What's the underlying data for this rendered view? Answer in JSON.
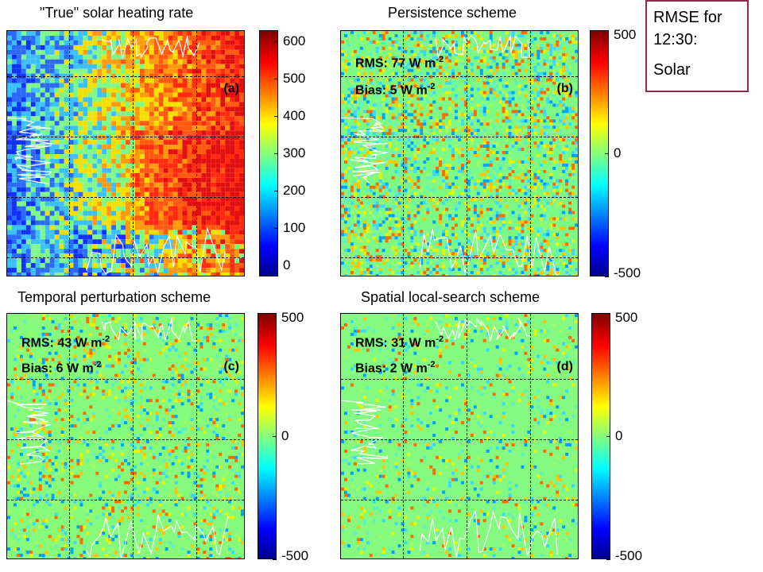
{
  "chart_data": [
    {
      "type": "heatmap",
      "title": "\"True\" solar heating rate",
      "panel_label": "(a)",
      "colorbar": {
        "ticks": [
          "0",
          "100",
          "200",
          "300",
          "400",
          "500",
          "600"
        ],
        "range": [
          -30,
          630
        ]
      },
      "colors": {
        "dominant_left": "#2060ff",
        "dominant_right": "#ff5a10",
        "mid": "#f4c400"
      }
    },
    {
      "type": "heatmap",
      "title": "Persistence scheme",
      "panel_label": "(b)",
      "rms": {
        "label": "RMS:",
        "value": "77",
        "unit": "W m",
        "exp": "-2"
      },
      "bias": {
        "label": "Bias:",
        "value": "5",
        "unit": "W m",
        "exp": "-2"
      },
      "colorbar": {
        "ticks": [
          "-500",
          "0",
          "500"
        ],
        "range": [
          -500,
          500
        ]
      },
      "colors": {
        "background": "#7dfa86"
      }
    },
    {
      "type": "heatmap",
      "title": "Temporal perturbation scheme",
      "panel_label": "(c)",
      "rms": {
        "label": "RMS:",
        "value": "43",
        "unit": "W m",
        "exp": "-2"
      },
      "bias": {
        "label": "Bias:",
        "value": "6",
        "unit": "W m",
        "exp": "-2"
      },
      "colorbar": {
        "ticks": [
          "-500",
          "0",
          "500"
        ],
        "range": [
          -500,
          500
        ]
      },
      "colors": {
        "background": "#86fa7a"
      }
    },
    {
      "type": "heatmap",
      "title": "Spatial local-search scheme",
      "panel_label": "(d)",
      "rms": {
        "label": "RMS:",
        "value": "31",
        "unit": "W m",
        "exp": "-2"
      },
      "bias": {
        "label": "Bias:",
        "value": "2",
        "unit": "W m",
        "exp": "-2"
      },
      "colorbar": {
        "ticks": [
          "-500",
          "0",
          "500"
        ],
        "range": [
          -500,
          500
        ]
      },
      "colors": {
        "background": "#84fa80"
      }
    }
  ],
  "note": {
    "line1": "RMSE for",
    "line2": "12:30:",
    "line3": "Solar",
    "border_color": "#8b2a4a"
  }
}
